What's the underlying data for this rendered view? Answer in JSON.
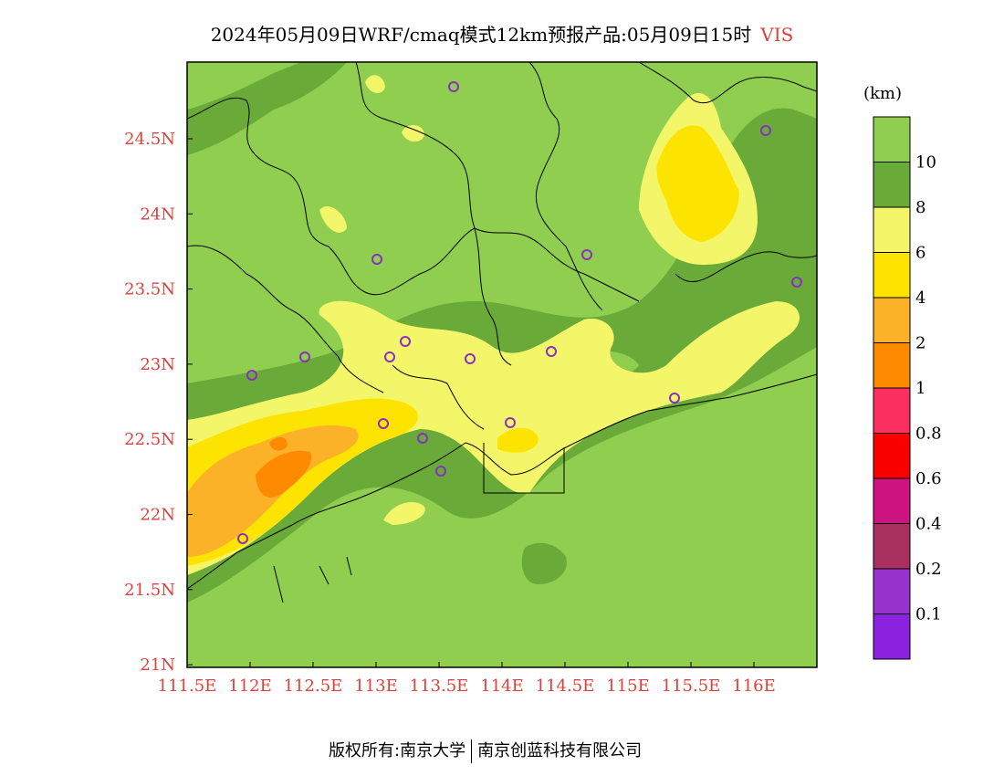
{
  "title": "2024年05月09日WRF/cmaq模式12km预报产品:05月09日15时",
  "variable": "VIS",
  "unit": "(km)",
  "footer": {
    "left": "版权所有:南京大学",
    "right": "南京创蓝科技有限公司"
  },
  "lat_ticks": [
    "24.5N",
    "24N",
    "23.5N",
    "23N",
    "22.5N",
    "22N",
    "21.5N",
    "21N"
  ],
  "lon_ticks": [
    "111.5E",
    "112E",
    "112.5E",
    "113E",
    "113.5E",
    "114E",
    "114.5E",
    "115E",
    "115.5E",
    "116E"
  ],
  "legend": [
    {
      "label": "10",
      "color": "#8fce4f"
    },
    {
      "label": "8",
      "color": "#6aaa38"
    },
    {
      "label": "6",
      "color": "#f4f66a"
    },
    {
      "label": "4",
      "color": "#fde400"
    },
    {
      "label": "2",
      "color": "#fbb228"
    },
    {
      "label": "1",
      "color": "#fd8a00"
    },
    {
      "label": "0.8",
      "color": "#fb3060"
    },
    {
      "label": "0.6",
      "color": "#fb0000"
    },
    {
      "label": "0.4",
      "color": "#cc1380"
    },
    {
      "label": "0.2",
      "color": "#a8305e"
    },
    {
      "label": "0.1",
      "color": "#9533cc"
    },
    {
      "label": "",
      "color": "#8a22e0"
    }
  ]
}
